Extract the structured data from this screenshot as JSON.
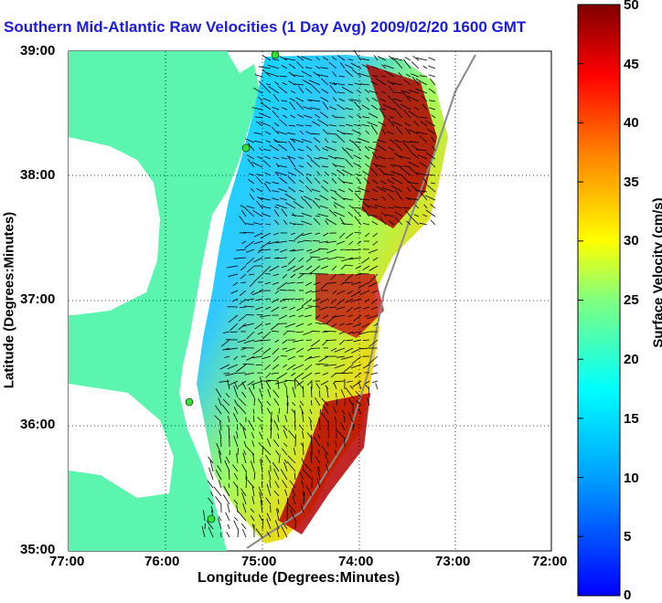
{
  "title": "Southern Mid-Atlantic Raw Velocities (1 Day Avg) 2009/02/20 1600 GMT",
  "x_axis": {
    "label": "Longitude (Degrees:Minutes)",
    "ticks": [
      "77:00",
      "76:00",
      "75:00",
      "74:00",
      "73:00",
      "72:00"
    ]
  },
  "y_axis": {
    "label": "Latitude (Degrees:Minutes)",
    "ticks": [
      "39:00",
      "38:00",
      "37:00",
      "36:00",
      "35:00"
    ]
  },
  "colorbar": {
    "label": "Surface Velocity (cm/s)",
    "ticks": [
      "50",
      "45",
      "40",
      "35",
      "30",
      "25",
      "20",
      "15",
      "10",
      "5",
      "0"
    ],
    "min": 0,
    "max": 50,
    "colormap": "jet"
  },
  "colors": {
    "land": "#5cf5b0",
    "water": "#ffffff",
    "title": "#1a1ae6",
    "station": "#33e033"
  },
  "map": {
    "lon_range": [
      "77:00",
      "72:00"
    ],
    "lat_range": [
      "35:00",
      "39:00"
    ],
    "grid": true,
    "stations": 4,
    "legend": "colorbar-right"
  }
}
